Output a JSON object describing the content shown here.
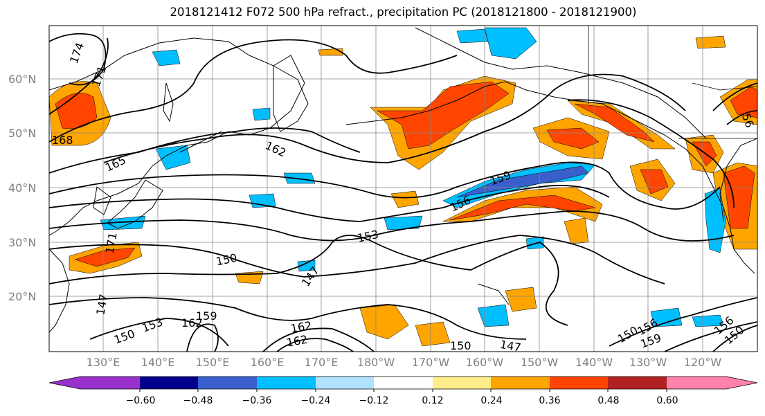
{
  "title": "2018121412 F072 500 hPa refract., precipitation PC (2018121800 - 2018121900)",
  "lat_labels": [
    "60°N",
    "50°N",
    "40°N",
    "30°N",
    "20°N"
  ],
  "lon_labels": [
    "130°E",
    "140°E",
    "150°E",
    "160°E",
    "170°E",
    "180°W",
    "170°W",
    "160°W",
    "150°W",
    "140°W",
    "130°W",
    "120°W"
  ],
  "colorbar": {
    "colors": [
      "#9932cc",
      "#00008b",
      "#3a5fcd",
      "#00bfff",
      "#b0e2ff",
      "#ffffff",
      "#ffec8b",
      "#ffa500",
      "#ff4500",
      "#b22222",
      "#ff82ab"
    ],
    "ticks": [
      "−0.60",
      "−0.48",
      "−0.36",
      "−0.24",
      "−0.12",
      "0.12",
      "0.24",
      "0.36",
      "0.48",
      "0.60"
    ]
  },
  "contour_labels": [
    {
      "text": "174"
    },
    {
      "text": "171"
    },
    {
      "text": "168"
    },
    {
      "text": "165"
    },
    {
      "text": "162"
    },
    {
      "text": "159"
    },
    {
      "text": "156"
    },
    {
      "text": "153"
    },
    {
      "text": "150"
    },
    {
      "text": "147"
    },
    {
      "text": "150"
    },
    {
      "text": "153"
    },
    {
      "text": "162"
    },
    {
      "text": "159"
    },
    {
      "text": "162"
    },
    {
      "text": "150"
    },
    {
      "text": "147"
    },
    {
      "text": "150"
    },
    {
      "text": "156"
    },
    {
      "text": "159"
    },
    {
      "text": "156"
    },
    {
      "text": "150"
    },
    {
      "text": "147"
    },
    {
      "text": "171"
    },
    {
      "text": "56"
    },
    {
      "text": "162"
    }
  ]
}
